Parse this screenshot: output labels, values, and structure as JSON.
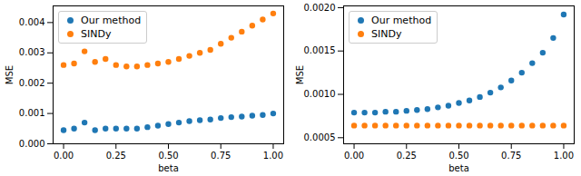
{
  "chart_data": [
    {
      "type": "scatter",
      "xlabel": "beta",
      "ylabel": "MSE",
      "legend": "upper left",
      "x": [
        0,
        0.05,
        0.1,
        0.15,
        0.2,
        0.25,
        0.3,
        0.35,
        0.4,
        0.45,
        0.5,
        0.55,
        0.6,
        0.65,
        0.7,
        0.75,
        0.8,
        0.85,
        0.9,
        0.95,
        1.0
      ],
      "series": [
        {
          "name": "Our method",
          "color": "#1f77b4",
          "values": [
            0.00045,
            0.0005,
            0.0007,
            0.00045,
            0.0005,
            0.0005,
            0.0005,
            0.0005,
            0.00055,
            0.0006,
            0.00065,
            0.0007,
            0.00075,
            0.00078,
            0.0008,
            0.00085,
            0.00088,
            0.0009,
            0.00093,
            0.00095,
            0.001
          ]
        },
        {
          "name": "SINDy",
          "color": "#ff7f0e",
          "values": [
            0.0026,
            0.00265,
            0.00305,
            0.0027,
            0.0028,
            0.0026,
            0.00255,
            0.00255,
            0.0026,
            0.00265,
            0.0027,
            0.0028,
            0.0029,
            0.003,
            0.0031,
            0.0033,
            0.0035,
            0.0037,
            0.0039,
            0.0041,
            0.0043
          ]
        }
      ],
      "xlim": [
        -0.05,
        1.05
      ],
      "xticks": [
        {
          "value": 0,
          "label": "0.00"
        },
        {
          "value": 0.25,
          "label": "0.25"
        },
        {
          "value": 0.5,
          "label": "0.50"
        },
        {
          "value": 0.75,
          "label": "0.75"
        },
        {
          "value": 1,
          "label": "1.00"
        }
      ],
      "ylim": [
        0,
        0.00455
      ],
      "yticks": [
        {
          "value": 0,
          "label": "0.000"
        },
        {
          "value": 0.001,
          "label": "0.001"
        },
        {
          "value": 0.002,
          "label": "0.002"
        },
        {
          "value": 0.003,
          "label": "0.003"
        },
        {
          "value": 0.004,
          "label": "0.004"
        }
      ]
    },
    {
      "type": "scatter",
      "xlabel": "beta",
      "ylabel": "MSE",
      "legend": "upper left",
      "x": [
        0,
        0.05,
        0.1,
        0.15,
        0.2,
        0.25,
        0.3,
        0.35,
        0.4,
        0.45,
        0.5,
        0.55,
        0.6,
        0.65,
        0.7,
        0.75,
        0.8,
        0.85,
        0.9,
        0.95,
        1.0
      ],
      "series": [
        {
          "name": "Our method",
          "color": "#1f77b4",
          "values": [
            0.00079,
            0.00079,
            0.00079,
            0.0008,
            0.0008,
            0.00081,
            0.00082,
            0.00083,
            0.00085,
            0.00087,
            0.0009,
            0.00093,
            0.00097,
            0.00102,
            0.00108,
            0.00116,
            0.00125,
            0.00136,
            0.00148,
            0.00165,
            0.00192
          ]
        },
        {
          "name": "SINDy",
          "color": "#ff7f0e",
          "values": [
            0.00064,
            0.00064,
            0.00064,
            0.00064,
            0.00064,
            0.00064,
            0.00064,
            0.00064,
            0.00064,
            0.00064,
            0.00064,
            0.00064,
            0.00064,
            0.00064,
            0.00064,
            0.00064,
            0.00064,
            0.00064,
            0.00064,
            0.00064,
            0.00064
          ]
        }
      ],
      "xlim": [
        -0.05,
        1.05
      ],
      "xticks": [
        {
          "value": 0,
          "label": "0.00"
        },
        {
          "value": 0.25,
          "label": "0.25"
        },
        {
          "value": 0.5,
          "label": "0.50"
        },
        {
          "value": 0.75,
          "label": "0.75"
        },
        {
          "value": 1,
          "label": "1.00"
        }
      ],
      "ylim": [
        0.00043,
        0.00202
      ],
      "yticks": [
        {
          "value": 0.0005,
          "label": "0.0005"
        },
        {
          "value": 0.001,
          "label": "0.0010"
        },
        {
          "value": 0.0015,
          "label": "0.0015"
        },
        {
          "value": 0.002,
          "label": "0.0020"
        }
      ]
    }
  ]
}
